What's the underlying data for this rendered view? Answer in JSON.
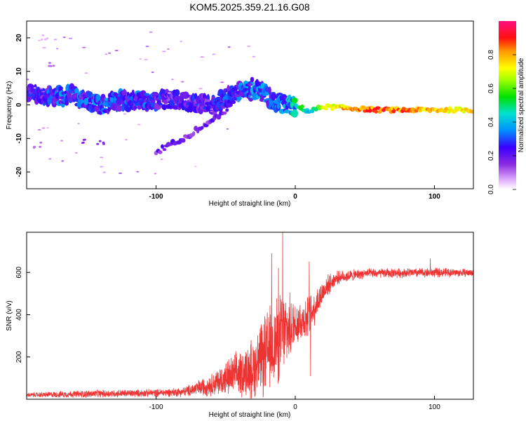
{
  "chart_data": [
    {
      "type": "heatmap",
      "title": "KOM5.2025.359.21.16.G08",
      "xlabel": "Height of straight line (km)",
      "ylabel": "Frequency (Hz)",
      "xlim": [
        -193,
        128
      ],
      "ylim": [
        -25,
        25
      ],
      "xticks": [
        -100,
        0,
        100
      ],
      "xtick_labels": [
        "-100",
        "0",
        "100"
      ],
      "yticks": [
        -20,
        -10,
        0,
        10,
        20
      ],
      "ytick_labels": [
        "-20",
        "-10",
        "0",
        "10",
        "20"
      ],
      "colorbar": {
        "label": "Normalized spectral amplitude",
        "range": [
          0,
          1
        ],
        "ticks": [
          0.0,
          0.2,
          0.4,
          0.6,
          0.8
        ],
        "tick_labels": [
          "0.0",
          "0.2",
          "0.4",
          "0.6",
          "0.8"
        ]
      },
      "ridge": [
        {
          "x": -193,
          "y": 3.5,
          "amp": 0.25
        },
        {
          "x": -170,
          "y": 2.5,
          "amp": 0.3
        },
        {
          "x": -160,
          "y": 3.2,
          "amp": 0.35
        },
        {
          "x": -150,
          "y": 1.0,
          "amp": 0.3
        },
        {
          "x": -140,
          "y": 0.0,
          "amp": 0.35
        },
        {
          "x": -125,
          "y": 1.5,
          "amp": 0.3
        },
        {
          "x": -105,
          "y": 1.0,
          "amp": 0.3
        },
        {
          "x": -90,
          "y": 1.5,
          "amp": 0.25
        },
        {
          "x": -75,
          "y": 0.5,
          "amp": 0.25
        },
        {
          "x": -60,
          "y": 0.0,
          "amp": 0.25
        },
        {
          "x": -45,
          "y": 3.0,
          "amp": 0.3
        },
        {
          "x": -35,
          "y": 5.0,
          "amp": 0.35
        },
        {
          "x": -25,
          "y": 4.0,
          "amp": 0.35
        },
        {
          "x": -15,
          "y": 1.0,
          "amp": 0.3
        },
        {
          "x": -5,
          "y": 0.0,
          "amp": 0.4
        },
        {
          "x": 5,
          "y": -1.0,
          "amp": 0.55
        },
        {
          "x": 10,
          "y": -2.0,
          "amp": 0.4
        },
        {
          "x": 20,
          "y": -0.5,
          "amp": 0.7
        },
        {
          "x": 40,
          "y": -1.0,
          "amp": 0.85
        },
        {
          "x": 60,
          "y": -1.5,
          "amp": 0.9
        },
        {
          "x": 80,
          "y": -1.5,
          "amp": 0.85
        },
        {
          "x": 100,
          "y": -1.5,
          "amp": 0.8
        },
        {
          "x": 128,
          "y": -1.5,
          "amp": 0.8
        }
      ],
      "secondary_branch": [
        {
          "x": -100,
          "y": -14,
          "amp": 0.2
        },
        {
          "x": -80,
          "y": -10,
          "amp": 0.2
        },
        {
          "x": -65,
          "y": -6,
          "amp": 0.2
        },
        {
          "x": -50,
          "y": -2,
          "amp": 0.2
        },
        {
          "x": -40,
          "y": 3,
          "amp": 0.25
        },
        {
          "x": -30,
          "y": 8,
          "amp": 0.25
        }
      ],
      "isolated_patches": [
        {
          "x": -150,
          "y": -11,
          "amp": 0.15
        },
        {
          "x": -140,
          "y": -11,
          "amp": 0.15
        },
        {
          "x": -185,
          "y": -12,
          "amp": 0.1
        },
        {
          "x": -175,
          "y": 12,
          "amp": 0.1
        },
        {
          "x": -180,
          "y": 20,
          "amp": 0.05
        }
      ]
    },
    {
      "type": "line",
      "title": "",
      "xlabel": "Height of straight line (km)",
      "ylabel": "SNR (v/v)",
      "xlim": [
        -193,
        128
      ],
      "ylim": [
        0,
        790
      ],
      "xticks": [
        -100,
        0,
        100
      ],
      "xtick_labels": [
        "-100",
        "0",
        "100"
      ],
      "yticks": [
        200,
        400,
        600
      ],
      "ytick_labels": [
        "200",
        "400",
        "600"
      ],
      "color": "#ee3333",
      "envelope": [
        {
          "x": -193,
          "base": 20,
          "noise": 12
        },
        {
          "x": -150,
          "base": 25,
          "noise": 20
        },
        {
          "x": -100,
          "base": 30,
          "noise": 20
        },
        {
          "x": -80,
          "base": 35,
          "noise": 25
        },
        {
          "x": -60,
          "base": 70,
          "noise": 60
        },
        {
          "x": -45,
          "base": 110,
          "noise": 110
        },
        {
          "x": -30,
          "base": 150,
          "noise": 160
        },
        {
          "x": -20,
          "base": 220,
          "noise": 230
        },
        {
          "x": -10,
          "base": 300,
          "noise": 240
        },
        {
          "x": 0,
          "base": 360,
          "noise": 130
        },
        {
          "x": 10,
          "base": 390,
          "noise": 110
        },
        {
          "x": 15,
          "base": 450,
          "noise": 90
        },
        {
          "x": 22,
          "base": 530,
          "noise": 60
        },
        {
          "x": 30,
          "base": 575,
          "noise": 35
        },
        {
          "x": 50,
          "base": 595,
          "noise": 25
        },
        {
          "x": 100,
          "base": 600,
          "noise": 25
        },
        {
          "x": 128,
          "base": 598,
          "noise": 20
        }
      ],
      "spikes": [
        {
          "x": -9,
          "y": 790
        },
        {
          "x": -17,
          "y": 690
        },
        {
          "x": -12,
          "y": 620
        },
        {
          "x": 10,
          "y": 650
        },
        {
          "x": 11,
          "y": 110
        },
        {
          "x": 97,
          "y": 665
        }
      ]
    }
  ]
}
